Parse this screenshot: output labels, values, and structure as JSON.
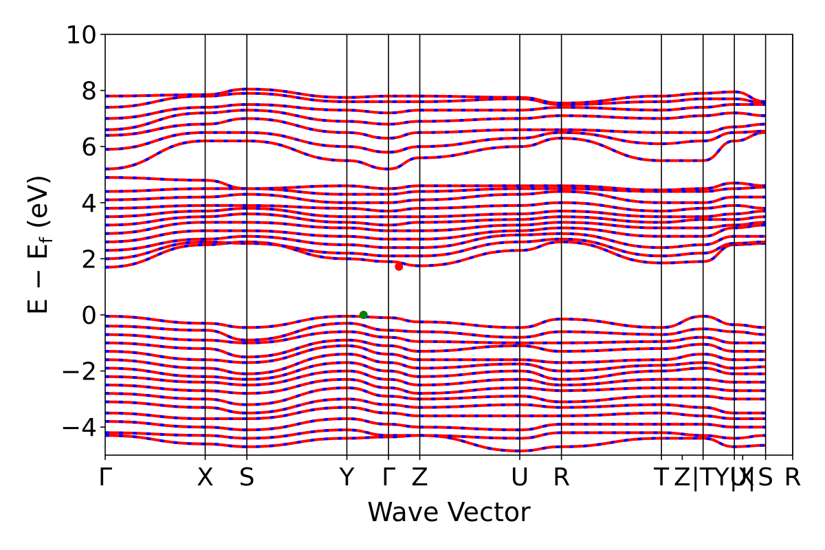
{
  "chart_data": {
    "type": "line",
    "title": "",
    "xlabel": "Wave Vector",
    "ylabel": "E − E_f (eV)",
    "ylabel_parts": {
      "main": "E − E",
      "sub": "f",
      "unit": " (eV)"
    },
    "ylim": [
      -5,
      10
    ],
    "yticks": [
      -4,
      -2,
      0,
      2,
      4,
      6,
      8,
      10
    ],
    "ytick_labels": [
      "−4",
      "−2",
      "0",
      "2",
      "4",
      "6",
      "8",
      "10"
    ],
    "xlim": [
      0,
      16.5
    ],
    "kpoints": [
      {
        "label": "Γ",
        "x": 0
      },
      {
        "label": "X",
        "x": 2.4
      },
      {
        "label": "S",
        "x": 3.4
      },
      {
        "label": "Y",
        "x": 5.8
      },
      {
        "label": "Γ",
        "x": 6.8
      },
      {
        "label": "Z",
        "x": 7.55
      },
      {
        "label": "U",
        "x": 9.95
      },
      {
        "label": "R",
        "x": 10.95
      },
      {
        "label": "T",
        "x": 13.35
      },
      {
        "label": "Z",
        "x": 13.85
      },
      {
        "label": "|T",
        "x": 14.35
      },
      {
        "label": "Y|X",
        "x": 15.1
      },
      {
        "label": "U|",
        "x": 15.3
      },
      {
        "label": "S",
        "x": 15.85
      },
      {
        "label": "R",
        "x": 16.5
      }
    ],
    "vlines_x": [
      2.4,
      3.4,
      5.8,
      6.8,
      7.55,
      9.95,
      10.95,
      13.35,
      14.35,
      15.1,
      15.85,
      16.5
    ],
    "vbm": {
      "x": 6.2,
      "y": 0.0,
      "color": "#008000"
    },
    "cbm": {
      "x": 7.05,
      "y": 1.72,
      "color": "#ff0000"
    },
    "band_colors": {
      "spin_up": "#ff0000",
      "spin_down": "#0000ff"
    },
    "valence_bands": [
      [
        -0.05,
        -0.3,
        -0.45,
        -0.05,
        -0.1,
        -0.25,
        -0.45,
        -0.15,
        -0.45,
        -0.05,
        -0.35,
        -0.45
      ],
      [
        -0.4,
        -0.55,
        -0.9,
        -0.3,
        -0.55,
        -0.6,
        -0.8,
        -0.6,
        -0.7,
        -0.5,
        -0.6,
        -0.7
      ],
      [
        -0.7,
        -0.9,
        -1.0,
        -0.6,
        -0.8,
        -0.95,
        -1.0,
        -1.0,
        -0.95,
        -0.8,
        -1.0,
        -1.0
      ],
      [
        -1.0,
        -1.2,
        -1.5,
        -0.9,
        -1.1,
        -1.3,
        -1.1,
        -1.3,
        -1.2,
        -1.05,
        -1.3,
        -1.3
      ],
      [
        -1.3,
        -1.6,
        -1.7,
        -1.1,
        -1.4,
        -1.6,
        -1.6,
        -1.7,
        -1.6,
        -1.4,
        -1.6,
        -1.6
      ],
      [
        -1.6,
        -1.9,
        -2.1,
        -1.4,
        -1.7,
        -1.9,
        -1.75,
        -2.0,
        -1.8,
        -1.7,
        -1.9,
        -1.85
      ],
      [
        -1.9,
        -2.2,
        -2.3,
        -1.7,
        -2.0,
        -2.2,
        -2.0,
        -2.3,
        -2.0,
        -1.9,
        -2.1,
        -2.1
      ],
      [
        -2.2,
        -2.4,
        -2.5,
        -2.0,
        -2.3,
        -2.5,
        -2.3,
        -2.5,
        -2.3,
        -2.3,
        -2.4,
        -2.4
      ],
      [
        -2.5,
        -2.7,
        -2.8,
        -2.3,
        -2.6,
        -2.8,
        -2.6,
        -2.7,
        -2.6,
        -2.6,
        -2.7,
        -2.7
      ],
      [
        -2.8,
        -3.0,
        -3.2,
        -2.6,
        -2.9,
        -3.0,
        -2.9,
        -3.1,
        -2.9,
        -2.9,
        -3.0,
        -3.0
      ],
      [
        -3.1,
        -3.3,
        -3.5,
        -3.0,
        -3.2,
        -3.3,
        -3.2,
        -3.3,
        -3.2,
        -3.3,
        -3.5,
        -3.5
      ],
      [
        -3.5,
        -3.7,
        -3.7,
        -3.3,
        -3.5,
        -3.6,
        -3.6,
        -3.6,
        -3.5,
        -3.6,
        -3.7,
        -3.7
      ],
      [
        -3.8,
        -4.0,
        -4.1,
        -3.7,
        -3.9,
        -4.0,
        -4.1,
        -3.9,
        -3.9,
        -3.9,
        -4.0,
        -4.0
      ],
      [
        -4.2,
        -4.3,
        -4.4,
        -4.1,
        -4.3,
        -4.3,
        -4.4,
        -4.2,
        -4.2,
        -4.3,
        -4.4,
        -4.3
      ],
      [
        -4.3,
        -4.6,
        -4.7,
        -4.4,
        -4.35,
        -4.3,
        -4.85,
        -4.7,
        -4.4,
        -4.4,
        -4.7,
        -4.65
      ]
    ],
    "conduction_bands": [
      [
        1.7,
        2.5,
        2.6,
        2.0,
        1.9,
        1.75,
        2.3,
        2.6,
        1.85,
        1.9,
        2.5,
        2.55
      ],
      [
        2.0,
        2.6,
        2.55,
        2.2,
        2.1,
        2.1,
        2.6,
        2.7,
        2.1,
        2.2,
        2.55,
        2.6
      ],
      [
        2.3,
        2.7,
        2.8,
        2.5,
        2.4,
        2.4,
        2.85,
        2.9,
        2.4,
        2.5,
        2.8,
        2.8
      ],
      [
        2.6,
        3.0,
        3.0,
        2.8,
        2.7,
        2.7,
        3.0,
        3.1,
        2.8,
        2.8,
        3.1,
        3.2
      ],
      [
        2.9,
        3.3,
        3.3,
        3.1,
        3.0,
        3.0,
        3.2,
        3.3,
        3.1,
        3.1,
        3.2,
        3.3
      ],
      [
        3.2,
        3.5,
        3.6,
        3.3,
        3.2,
        3.3,
        3.4,
        3.5,
        3.3,
        3.4,
        3.4,
        3.5
      ],
      [
        3.5,
        3.7,
        3.8,
        3.5,
        3.5,
        3.5,
        3.6,
        3.7,
        3.5,
        3.5,
        3.6,
        3.7
      ],
      [
        3.8,
        3.9,
        3.9,
        3.8,
        3.7,
        3.8,
        3.9,
        4.0,
        3.7,
        3.8,
        3.9,
        3.8
      ],
      [
        4.1,
        4.2,
        4.3,
        4.0,
        4.0,
        4.1,
        4.3,
        4.4,
        4.0,
        4.0,
        4.2,
        4.2
      ],
      [
        4.4,
        4.5,
        4.5,
        4.3,
        4.3,
        4.4,
        4.5,
        4.5,
        4.4,
        4.4,
        4.5,
        4.55
      ],
      [
        4.9,
        4.8,
        4.5,
        4.6,
        4.5,
        4.6,
        4.6,
        4.6,
        4.45,
        4.5,
        4.7,
        4.6
      ],
      [
        5.2,
        6.2,
        6.2,
        5.5,
        5.2,
        5.6,
        6.0,
        6.3,
        5.5,
        5.5,
        6.2,
        6.5
      ],
      [
        5.9,
        6.5,
        6.5,
        6.0,
        5.8,
        6.0,
        6.3,
        6.5,
        6.1,
        6.2,
        6.5,
        6.55
      ],
      [
        6.4,
        6.8,
        7.0,
        6.5,
        6.3,
        6.5,
        6.6,
        6.6,
        6.5,
        6.5,
        6.7,
        6.8
      ],
      [
        6.6,
        7.2,
        7.3,
        6.9,
        6.8,
        6.9,
        7.0,
        7.1,
        7.0,
        7.1,
        7.2,
        7.1
      ],
      [
        7.0,
        7.4,
        7.5,
        7.3,
        7.2,
        7.3,
        7.3,
        7.4,
        7.3,
        7.4,
        7.5,
        7.5
      ],
      [
        7.4,
        7.8,
        7.9,
        7.6,
        7.6,
        7.6,
        7.7,
        7.5,
        7.6,
        7.7,
        7.7,
        7.55
      ],
      [
        7.8,
        7.85,
        8.05,
        7.75,
        7.8,
        7.8,
        7.75,
        7.55,
        7.8,
        7.9,
        7.95,
        7.6
      ]
    ]
  }
}
